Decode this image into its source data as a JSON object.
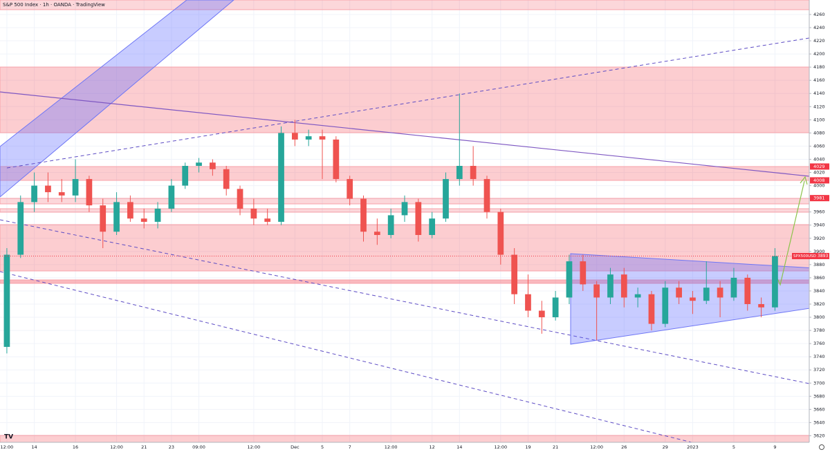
{
  "chart_data": {
    "type": "candlestick",
    "title": "S&P 500 Index · 1h · OANDA · TradingView",
    "categories": [
      "12:00",
      null,
      "14",
      null,
      null,
      "16",
      null,
      null,
      "12:00",
      null,
      "21",
      null,
      "23",
      null,
      "09:00",
      null,
      null,
      null,
      "12:00",
      null,
      null,
      "Dec",
      null,
      "5",
      null,
      "7",
      null,
      null,
      "12:00",
      null,
      null,
      "12",
      null,
      "14",
      null,
      null,
      "12:00",
      null,
      "19",
      null,
      "21",
      null,
      null,
      "12:00",
      null,
      "26",
      null,
      null,
      "29",
      null,
      "2023",
      null,
      null,
      "5",
      null,
      null,
      "9",
      null,
      null
    ],
    "open": [
      3755,
      3895,
      3975,
      4000,
      3990,
      3985,
      4010,
      3970,
      3930,
      3975,
      3950,
      3945,
      3965,
      4000,
      4030,
      4035,
      4025,
      3995,
      3965,
      3950,
      3945,
      4080,
      4070,
      4075,
      4070,
      4010,
      3980,
      3930,
      3925,
      3955,
      3975,
      3925,
      3950,
      4010,
      4030,
      4010,
      3960,
      3895,
      3835,
      3810,
      3800,
      3830,
      3885,
      3850,
      3830,
      3865,
      3830,
      3835,
      3790,
      3845,
      3830,
      3825,
      3845,
      3830,
      3860,
      3820,
      3815,
      null,
      null
    ],
    "high": [
      3905,
      3985,
      4020,
      4020,
      4010,
      4040,
      4015,
      3980,
      3990,
      3985,
      3965,
      3975,
      4010,
      4035,
      4042,
      4040,
      4030,
      4000,
      3980,
      3965,
      4090,
      4100,
      4085,
      4085,
      4075,
      4015,
      3985,
      3950,
      3965,
      3985,
      3980,
      3960,
      4020,
      4140,
      4060,
      4015,
      3965,
      3905,
      3865,
      3825,
      3840,
      3895,
      3895,
      3855,
      3875,
      3875,
      3845,
      3840,
      3855,
      3855,
      3840,
      3885,
      3855,
      3875,
      3865,
      3830,
      3905,
      null,
      null
    ],
    "low": [
      3745,
      3890,
      3960,
      3975,
      3975,
      3975,
      3960,
      3905,
      3925,
      3945,
      3935,
      3935,
      3960,
      3995,
      4020,
      4015,
      3985,
      3955,
      3940,
      3940,
      3940,
      4060,
      4060,
      4010,
      4005,
      3970,
      3915,
      3910,
      3920,
      3945,
      3915,
      3920,
      3945,
      4000,
      4000,
      3950,
      3880,
      3820,
      3800,
      3775,
      3795,
      3820,
      3840,
      3765,
      3820,
      3815,
      3815,
      3780,
      3785,
      3820,
      3805,
      3820,
      3800,
      3825,
      3810,
      3800,
      3810,
      null,
      null
    ],
    "close": [
      3895,
      3975,
      4000,
      3990,
      3985,
      4010,
      3970,
      3930,
      3975,
      3950,
      3945,
      3965,
      4000,
      4030,
      4035,
      4025,
      3995,
      3965,
      3950,
      3945,
      4080,
      4070,
      4075,
      4070,
      4010,
      3980,
      3930,
      3925,
      3955,
      3975,
      3925,
      3950,
      4010,
      4030,
      4010,
      3960,
      3895,
      3835,
      3810,
      3800,
      3830,
      3885,
      3850,
      3830,
      3865,
      3830,
      3835,
      3790,
      3845,
      3830,
      3825,
      3845,
      3830,
      3860,
      3820,
      3815,
      3893,
      null,
      null
    ],
    "up_color": "#26a69a",
    "down_color": "#ef5350",
    "ylim": [
      3610,
      4282
    ],
    "yticks": [
      3620,
      3640,
      3660,
      3680,
      3700,
      3720,
      3740,
      3760,
      3780,
      3800,
      3820,
      3840,
      3860,
      3880,
      3900,
      3920,
      3940,
      3960,
      3980,
      4000,
      4020,
      4040,
      4060,
      4080,
      4100,
      4120,
      4140,
      4160,
      4180,
      4200,
      4220,
      4240,
      4260
    ],
    "grid": true,
    "level_labels": [
      4029,
      4008,
      3981
    ],
    "symbol": "SPX500USD",
    "last_price": 3893
  }
}
